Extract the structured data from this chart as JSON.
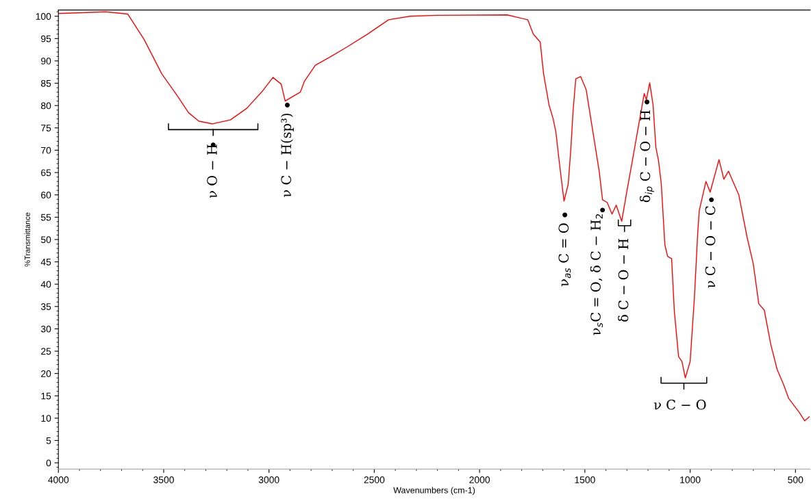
{
  "chart_data": {
    "type": "line",
    "xlabel": "Wavenumbers (cm-1)",
    "ylabel": "%Transmittance",
    "xlim": [
      4000,
      430
    ],
    "ylim": [
      -1.4,
      101.4
    ],
    "xticks": [
      4000,
      3500,
      3000,
      2500,
      2000,
      1500,
      1000,
      500
    ],
    "yticks": [
      0,
      5,
      10,
      15,
      20,
      25,
      30,
      35,
      40,
      45,
      50,
      55,
      60,
      65,
      70,
      75,
      80,
      85,
      90,
      95,
      100
    ],
    "grid": false,
    "legend": false,
    "marker": "none",
    "line_style": "solid",
    "series": [
      {
        "color": "#ff0000",
        "x": [
          4000,
          3775,
          3671,
          3593,
          3509,
          3431,
          3382,
          3333,
          3268,
          3183,
          3105,
          3030,
          2981,
          2942,
          2923,
          2881,
          2851,
          2832,
          2780,
          2705,
          2630,
          2532,
          2432,
          2331,
          2207,
          1869,
          1771,
          1745,
          1712,
          1696,
          1670,
          1651,
          1638,
          1621,
          1599,
          1579,
          1566,
          1556,
          1543,
          1520,
          1494,
          1462,
          1432,
          1416,
          1394,
          1371,
          1351,
          1325,
          1299,
          1276,
          1250,
          1218,
          1208,
          1192,
          1176,
          1163,
          1150,
          1137,
          1120,
          1107,
          1088,
          1075,
          1055,
          1039,
          1023,
          1000,
          980,
          964,
          957,
          925,
          905,
          863,
          840,
          818,
          769,
          730,
          700,
          674,
          648,
          618,
          587,
          557,
          532,
          482,
          456,
          434
        ],
        "values": [
          100.6,
          101,
          100.5,
          94.8,
          87.1,
          81.9,
          78.4,
          76.5,
          75.9,
          76.8,
          79.4,
          83.3,
          86.3,
          84.8,
          81.0,
          82.2,
          83.0,
          85.4,
          89.0,
          91.0,
          93.1,
          96.0,
          99.2,
          100,
          100.2,
          100.3,
          99.2,
          96.0,
          94.2,
          87.1,
          80.1,
          77.1,
          74.2,
          67.2,
          58.6,
          62.4,
          70.7,
          78.8,
          86.0,
          86.5,
          83.6,
          74.2,
          65.3,
          58.9,
          58.3,
          55.7,
          57.7,
          54.1,
          61.2,
          67.2,
          74.2,
          82.7,
          81.3,
          85.1,
          80.1,
          70.7,
          67.6,
          62.4,
          48.8,
          46.2,
          45.7,
          33.9,
          23.8,
          22.7,
          19.0,
          22.7,
          36.8,
          51.5,
          56.4,
          63.0,
          60.6,
          67.9,
          63.5,
          65.3,
          60.0,
          50.6,
          44.5,
          35.6,
          34.2,
          26.7,
          20.9,
          17.6,
          14.4,
          11.3,
          9.4,
          10.3
        ]
      }
    ],
    "annotations": [
      {
        "text": "ν O − H",
        "x": 3265,
        "y": 71.2
      },
      {
        "text": "ν C − H(sp³)",
        "x": 2913,
        "y": 80.1
      },
      {
        "text": "ν$_{as}$ C = O",
        "x": 1595,
        "y": 55.5
      },
      {
        "text": "ν$_{s}$C = O, δ C − H$_{2}$",
        "x": 1416,
        "y": 56.6
      },
      "δ C − O − H",
      {
        "text": "δ$_{ip}$ C − O − H",
        "x": 1205,
        "y": 80.8
      },
      {
        "text": "ν C − O − C",
        "x": 899,
        "y": 58.9
      },
      "ν C − O"
    ]
  }
}
